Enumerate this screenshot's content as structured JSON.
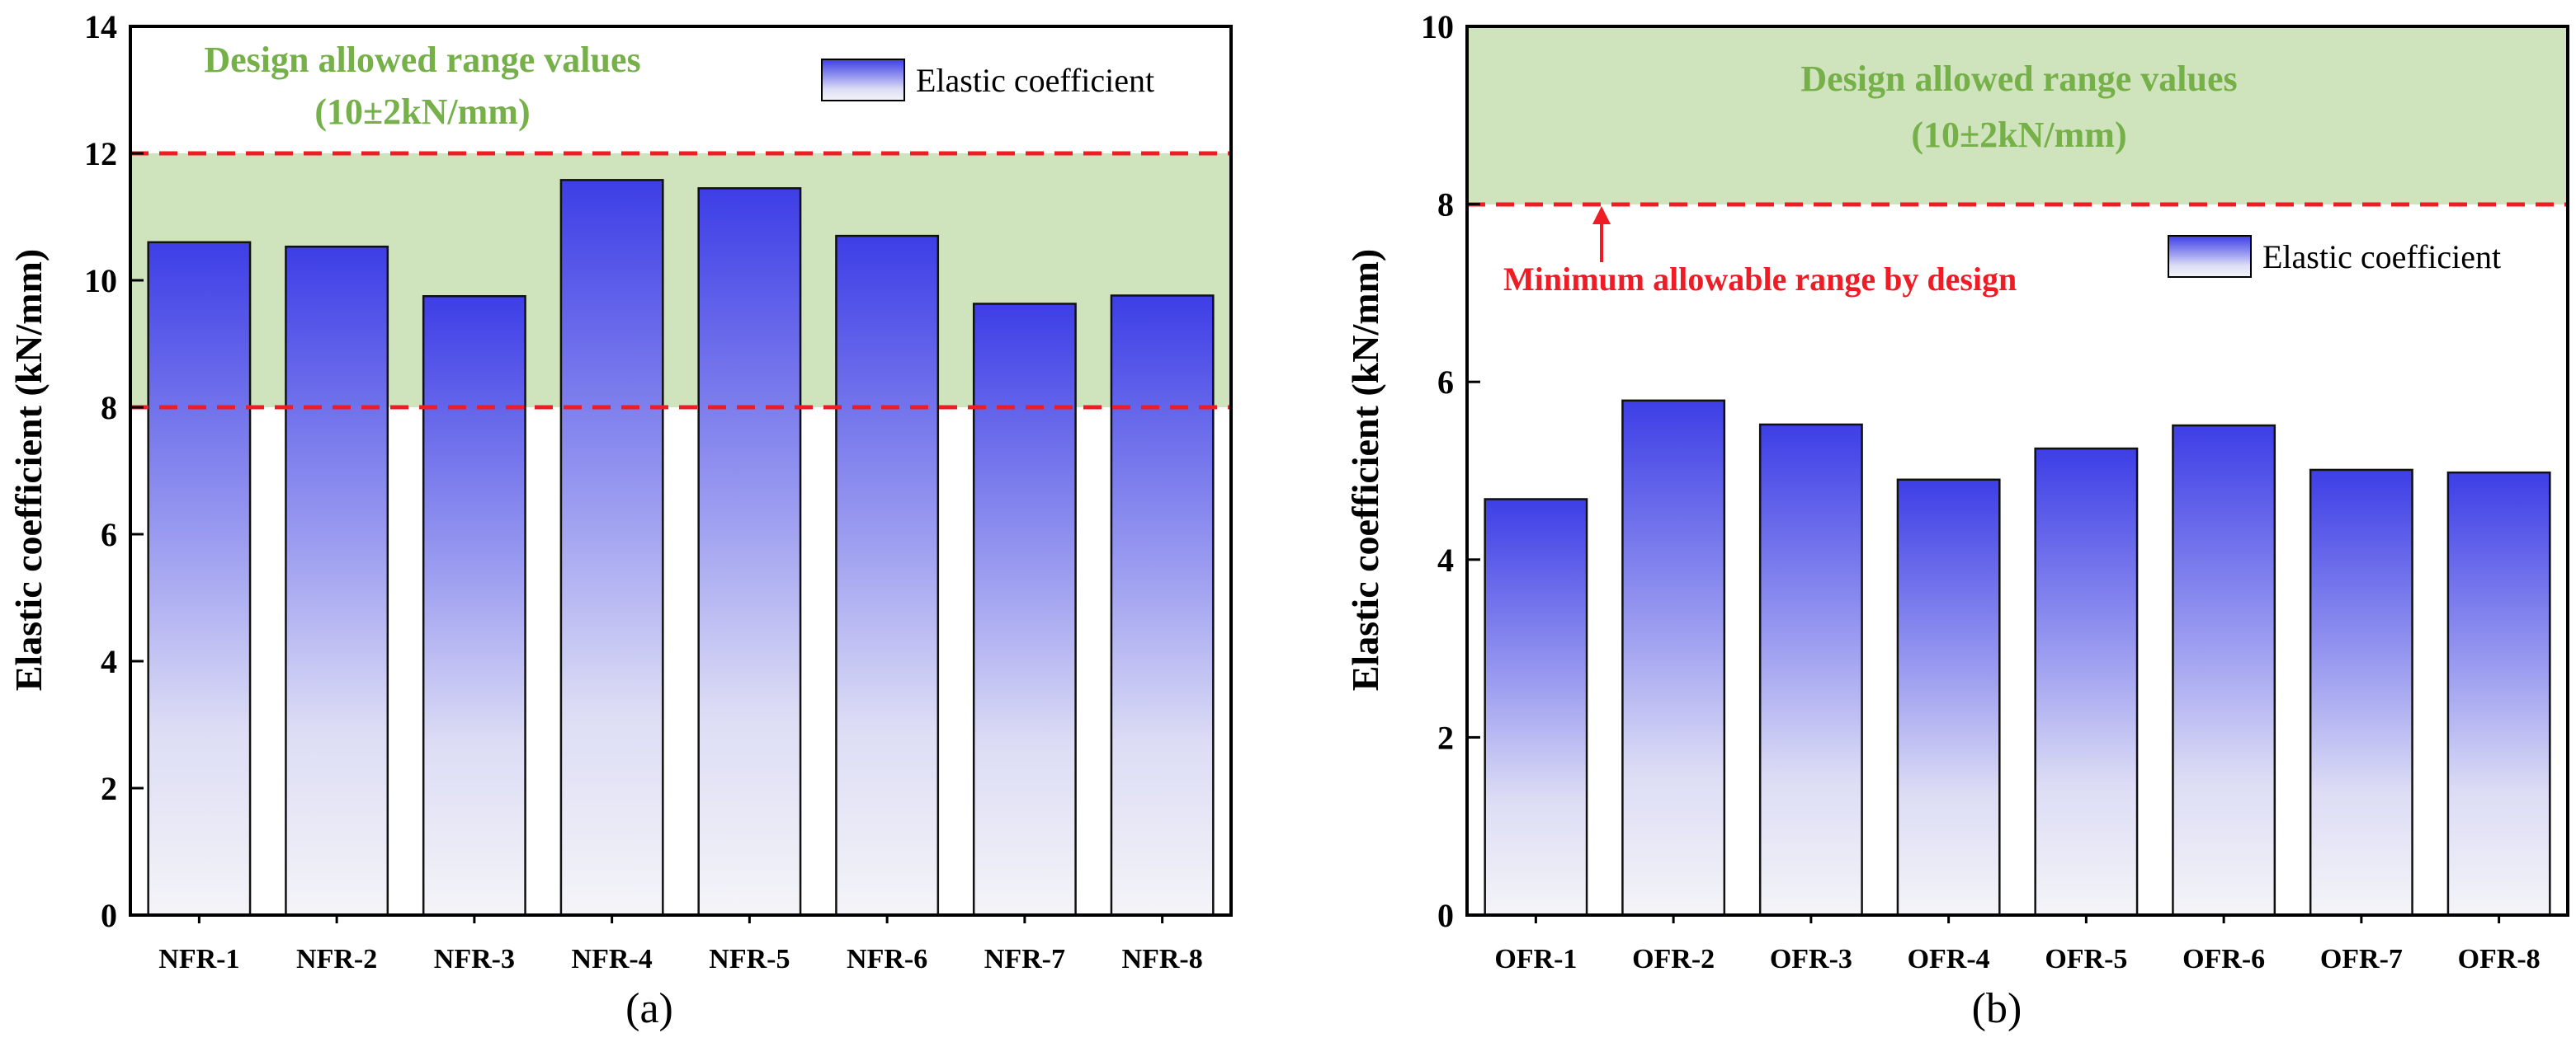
{
  "chart_data": [
    {
      "panel": "(a)",
      "type": "bar",
      "categories": [
        "NFR-1",
        "NFR-2",
        "NFR-3",
        "NFR-4",
        "NFR-5",
        "NFR-6",
        "NFR-7",
        "NFR-8"
      ],
      "series": [
        {
          "name": "Elastic coefficient",
          "values": [
            10.6,
            10.53,
            9.75,
            11.58,
            11.45,
            10.7,
            9.63,
            9.76
          ]
        }
      ],
      "ylabel": "Elastic coefficient (kN/mm)",
      "xlabel": "",
      "ylim": [
        0,
        14
      ],
      "yticks": [
        0,
        2,
        4,
        6,
        8,
        10,
        12,
        14
      ],
      "allowed_band": {
        "from": 8,
        "to": 12,
        "color": "#cfe3bd"
      },
      "reference_lines": [
        8,
        12
      ],
      "band_title": [
        "Design allowed range values",
        "(10±2kN/mm)"
      ],
      "legend": "Elastic coefficient",
      "legend_position": "top-right",
      "panel_label": "(a)"
    },
    {
      "panel": "(b)",
      "type": "bar",
      "categories": [
        "OFR-1",
        "OFR-2",
        "OFR-3",
        "OFR-4",
        "OFR-5",
        "OFR-6",
        "OFR-7",
        "OFR-8"
      ],
      "series": [
        {
          "name": "Elastic coefficient",
          "values": [
            4.68,
            5.79,
            5.52,
            4.9,
            5.25,
            5.51,
            5.01,
            4.98
          ]
        }
      ],
      "ylabel": "Elastic coefficient (kN/mm)",
      "xlabel": "",
      "ylim": [
        0,
        10
      ],
      "yticks": [
        0,
        2,
        4,
        6,
        8,
        10
      ],
      "allowed_band": {
        "from": 8,
        "to": 10,
        "color": "#cfe3bd"
      },
      "reference_lines": [
        8
      ],
      "band_title": [
        "Design allowed range values",
        "(10±2kN/mm)"
      ],
      "annotation": "Minimum allowable range by design",
      "legend": "Elastic coefficient",
      "legend_position": "center-right",
      "panel_label": "(b)"
    }
  ],
  "colors": {
    "bar_top": "#3d3ee6",
    "bar_bottom": "#f4f4f8",
    "band": "#cfe3bd",
    "band_text": "#76b049",
    "ref_line": "#ee1c24",
    "annotation": "#ee1c24"
  }
}
